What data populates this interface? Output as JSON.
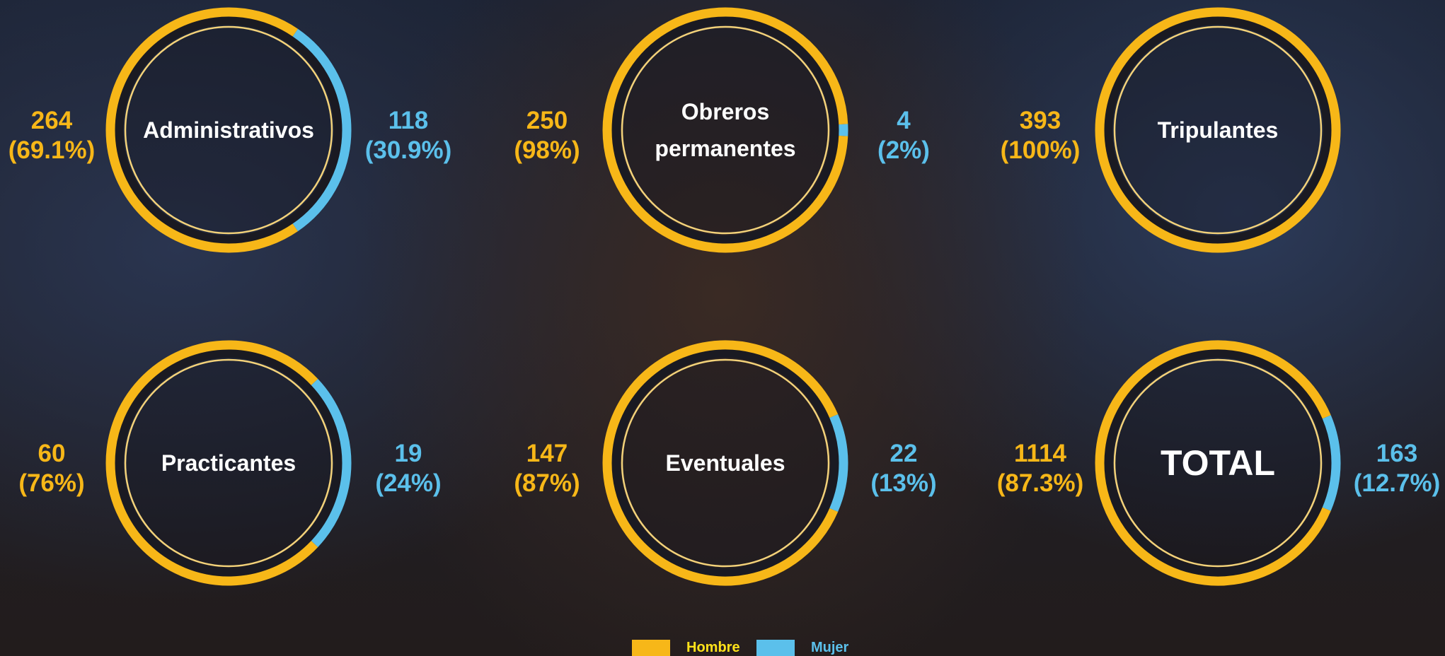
{
  "chart_data": {
    "type": "donut",
    "categories": [
      "Administrativos",
      "Obreros permanentes",
      "Tripulantes",
      "Practicantes",
      "Eventuales",
      "TOTAL"
    ],
    "series": [
      {
        "name": "Hombre",
        "color": "#f7b718",
        "values": [
          264,
          250,
          393,
          60,
          147,
          1114
        ],
        "percents": [
          69.1,
          98,
          100,
          76,
          87,
          87.3
        ],
        "percent_labels": [
          "(69.1%)",
          "(98%)",
          "(100%)",
          "(76%)",
          "(87%)",
          "(87.3%)"
        ]
      },
      {
        "name": "Mujer",
        "color": "#5bc0eb",
        "values": [
          118,
          4,
          null,
          19,
          22,
          163
        ],
        "percents": [
          30.9,
          2,
          null,
          24,
          13,
          12.7
        ],
        "percent_labels": [
          "(30.9%)",
          "(2%)",
          null,
          "(24%)",
          "(13%)",
          "(12.7%)"
        ]
      }
    ]
  }
}
